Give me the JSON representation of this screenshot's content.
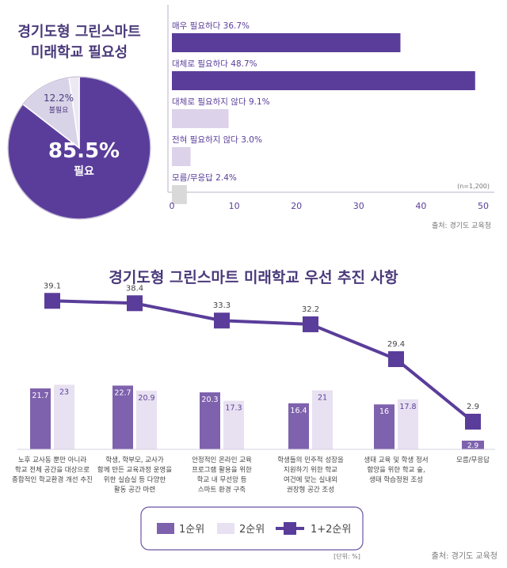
{
  "chart_data": [
    {
      "type": "pie",
      "title": [
        "경기도형 그린스마트",
        "미래학교 필요성"
      ],
      "slices": [
        {
          "label": "필요",
          "value": 85.5,
          "display": "85.5%",
          "color": "#5a3d9a"
        },
        {
          "label": "불필요",
          "value": 12.2,
          "display": "12.2%",
          "color": "#d9d3e8"
        },
        {
          "label": "",
          "value": 2.3,
          "display": "",
          "color": "#ece9f2"
        }
      ]
    },
    {
      "type": "bar",
      "orientation": "horizontal",
      "bars": [
        {
          "label": "매우 필요하다 36.7%",
          "value": 36.7,
          "color": "#5a3d9a"
        },
        {
          "label": "대체로 필요하다 48.7%",
          "value": 48.7,
          "color": "#5a3d9a"
        },
        {
          "label": "대체로 필요하지 않다 9.1%",
          "value": 9.1,
          "color": "#dcd3ea"
        },
        {
          "label": "전혀 필요하지 않다 3.0%",
          "value": 3.0,
          "color": "#dcd3ea"
        },
        {
          "label": "모름/무응답 2.4%",
          "value": 2.4,
          "color": "#d9d9d9"
        }
      ],
      "xlim": [
        0,
        50
      ],
      "xticks": [
        0,
        10,
        20,
        30,
        40,
        50
      ],
      "note": "(n=1,200)",
      "source": "출처: 경기도 교육청"
    },
    {
      "type": "bar",
      "title": "경기도형 그린스마트 미래학교 우선 추진 사항",
      "categories": [
        [
          "노후 교사동 뿐만 아니라",
          "학교 전체 공간을 대상으로",
          "종합적인 학교환경 개선 추진"
        ],
        [
          "학생, 학부모, 교사가",
          "함께 만든 교육과정 운영을",
          "위한 실습실 등 다양한",
          "활동 공간 마련"
        ],
        [
          "안정적인 온라인 교육",
          "프로그램 활용을 위한",
          "학교 내 무선망 등",
          "스마트 환경 구축"
        ],
        [
          "학생들의 민주적 성장을",
          "지원하기 위한 학교",
          "여건에 맞는 실내외",
          "권장형 공간 조성"
        ],
        [
          "생태 교육 및 학생 정서",
          "함양을 위한 학교 숲,",
          "생태 학습정원 조성"
        ],
        [
          "모름/무응답"
        ]
      ],
      "series": [
        {
          "name": "1순위",
          "type": "bar",
          "color": "#7e62ad",
          "values": [
            21.7,
            22.7,
            20.3,
            16.4,
            16.0,
            2.9
          ]
        },
        {
          "name": "2순위",
          "type": "bar",
          "color": "#e8e1f1",
          "values": [
            23.0,
            20.9,
            17.3,
            21.0,
            17.8,
            null
          ]
        },
        {
          "name": "1+2순위",
          "type": "line",
          "color": "#5a3d9a",
          "values": [
            39.1,
            38.4,
            33.3,
            32.2,
            29.4,
            2.9
          ]
        }
      ],
      "unit_note": "[단위: %]",
      "source": "출처: 경기도 교육청"
    }
  ]
}
